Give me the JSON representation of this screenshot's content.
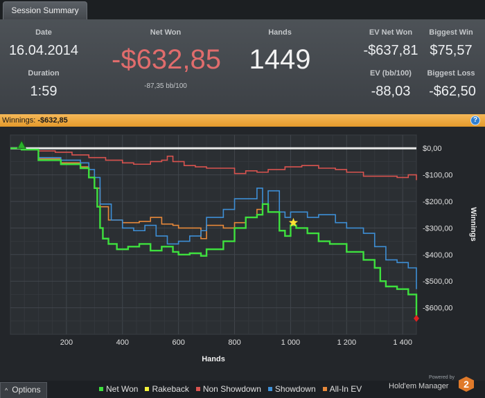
{
  "tab": {
    "label": "Session Summary"
  },
  "summary": {
    "date_label": "Date",
    "date_value": "16.04.2014",
    "duration_label": "Duration",
    "duration_value": "1:59",
    "net_won_label": "Net Won",
    "net_won_value": "-$632,85",
    "net_won_sub": "-87,35 bb/100",
    "hands_label": "Hands",
    "hands_value": "1449",
    "ev_net_won_label": "EV Net Won",
    "ev_net_won_value": "-$637,81",
    "biggest_win_label": "Biggest Win",
    "biggest_win_value": "$75,57",
    "ev_bb_label": "EV (bb/100)",
    "ev_bb_value": "-88,03",
    "biggest_loss_label": "Biggest Loss",
    "biggest_loss_value": "-$62,50"
  },
  "winnings_bar": {
    "label": "Winnings:",
    "value": "-$632,85",
    "help_icon": "question-icon"
  },
  "bottom": {
    "options_label": "Options",
    "options_icon": "chevron-up-icon",
    "powered_by": "Powered by",
    "brand": "Hold'em Manager",
    "brand_badge": "2"
  },
  "colors": {
    "net_won": "#3ee03e",
    "rakeback": "#f4f43a",
    "non_showdown": "#d9534f",
    "showdown": "#3e8fd6",
    "all_in_ev": "#e8893a",
    "zero_line": "#e8e8e8"
  },
  "chart_data": {
    "type": "line",
    "xlabel": "Hands",
    "ylabel": "Winnings",
    "xlim": [
      0,
      1449
    ],
    "ylim": [
      -700,
      50
    ],
    "x_ticks": [
      200,
      400,
      600,
      800,
      1000,
      1200,
      1400
    ],
    "x_tick_labels": [
      "200",
      "400",
      "600",
      "800",
      "1 000",
      "1 200",
      "1 400"
    ],
    "y_ticks": [
      0,
      -100,
      -200,
      -300,
      -400,
      -500,
      -600
    ],
    "y_tick_labels": [
      "$0,00",
      "-$100,00",
      "-$200,00",
      "-$300,00",
      "-$400,00",
      "-$500,00",
      "-$600,00"
    ],
    "y_axis_side": "right",
    "grid": true,
    "legend_position": "bottom",
    "series": [
      {
        "name": "Net Won",
        "color": "#3ee03e",
        "x": [
          0,
          40,
          100,
          180,
          250,
          280,
          300,
          310,
          320,
          330,
          350,
          380,
          420,
          460,
          500,
          540,
          580,
          600,
          640,
          680,
          700,
          760,
          800,
          840,
          880,
          900,
          920,
          960,
          980,
          1000,
          1020,
          1060,
          1100,
          1140,
          1180,
          1200,
          1260,
          1300,
          1320,
          1340,
          1380,
          1400,
          1420,
          1449
        ],
        "y": [
          0,
          -5,
          -45,
          -60,
          -75,
          -110,
          -150,
          -220,
          -300,
          -340,
          -360,
          -380,
          -370,
          -360,
          -385,
          -370,
          -390,
          -400,
          -395,
          -405,
          -380,
          -350,
          -300,
          -260,
          -250,
          -210,
          -240,
          -310,
          -330,
          -290,
          -300,
          -320,
          -350,
          -360,
          -360,
          -390,
          -420,
          -450,
          -500,
          -520,
          -530,
          -530,
          -550,
          -632
        ]
      },
      {
        "name": "Rakeback",
        "color": "#f4f43a",
        "x": [
          0,
          1449
        ],
        "y": [
          0,
          0
        ]
      },
      {
        "name": "Non Showdown",
        "color": "#d9534f",
        "x": [
          0,
          40,
          100,
          160,
          220,
          280,
          340,
          400,
          440,
          500,
          540,
          560,
          580,
          620,
          660,
          700,
          760,
          800,
          840,
          880,
          920,
          980,
          1040,
          1100,
          1160,
          1200,
          1260,
          1320,
          1380,
          1420,
          1449
        ],
        "y": [
          0,
          -5,
          -10,
          -15,
          -25,
          -35,
          -45,
          -55,
          -60,
          -50,
          -45,
          -30,
          -50,
          -65,
          -70,
          -75,
          -75,
          -95,
          -85,
          -90,
          -80,
          -70,
          -65,
          -75,
          -80,
          -90,
          -105,
          -105,
          -110,
          -100,
          -120
        ]
      },
      {
        "name": "Showdown",
        "color": "#3e8fd6",
        "x": [
          0,
          40,
          100,
          180,
          250,
          280,
          300,
          320,
          360,
          400,
          440,
          480,
          520,
          560,
          600,
          640,
          680,
          700,
          760,
          800,
          840,
          880,
          900,
          920,
          960,
          980,
          1000,
          1060,
          1100,
          1160,
          1200,
          1260,
          1300,
          1340,
          1380,
          1420,
          1449
        ],
        "y": [
          0,
          -5,
          -35,
          -45,
          -55,
          -80,
          -110,
          -210,
          -270,
          -300,
          -310,
          -290,
          -330,
          -360,
          -350,
          -330,
          -310,
          -260,
          -230,
          -190,
          -190,
          -150,
          -210,
          -160,
          -240,
          -260,
          -240,
          -260,
          -250,
          -280,
          -300,
          -320,
          -370,
          -420,
          -430,
          -450,
          -530
        ]
      },
      {
        "name": "All-In EV",
        "color": "#e8893a",
        "x": [
          0,
          40,
          100,
          180,
          250,
          280,
          300,
          320,
          350,
          400,
          460,
          500,
          540,
          580,
          600,
          640,
          680,
          700,
          760,
          800,
          840,
          880,
          900
        ],
        "y": [
          0,
          -5,
          -40,
          -55,
          -70,
          -110,
          -150,
          -220,
          -270,
          -280,
          -275,
          -260,
          -285,
          -290,
          -300,
          -300,
          -340,
          -290,
          -300,
          -280,
          -260,
          -230,
          -210
        ]
      }
    ],
    "markers": [
      {
        "name": "start-marker",
        "x": 40,
        "y": 10,
        "color": "#2bb02b",
        "shape": "triangle"
      },
      {
        "name": "end-marker",
        "x": 1449,
        "y": -640,
        "color": "#e02020",
        "shape": "diamond"
      },
      {
        "name": "star-marker",
        "x": 1010,
        "y": -280,
        "color": "#ffe033",
        "shape": "star"
      }
    ]
  }
}
